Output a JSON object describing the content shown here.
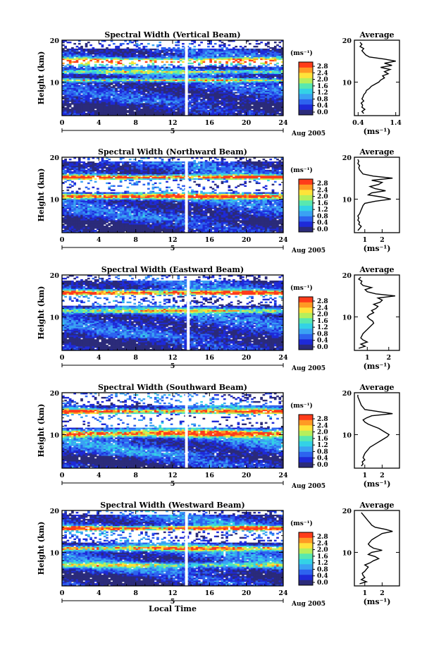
{
  "figure": {
    "date_label": "Aug 2005",
    "xlabel_bottom": "Local Time",
    "colorbar_ticks": [
      "0.0",
      "0.4",
      "0.8",
      "1.2",
      "1.6",
      "2.0",
      "2.4",
      "2.8"
    ],
    "colorbar_unit": "(ms⁻¹)",
    "colorbar_colors": [
      "#2b2b7a",
      "#1e2ad8",
      "#2d63ef",
      "#3aa2f3",
      "#33d2e6",
      "#58e8b0",
      "#b6ef5c",
      "#ffe33a",
      "#ff9a24",
      "#ff3c1a"
    ],
    "average_title": "Average",
    "average_xlabel": "(ms⁻¹)",
    "height_label": "Height (km)"
  },
  "chart_data": [
    {
      "type": "heatmap",
      "title": "Spectral Width (Vertical Beam)",
      "xlabel": "",
      "ylabel": "Height (km)",
      "x_range": [
        0,
        24
      ],
      "y_range": [
        2,
        20
      ],
      "x_ticks": [
        0,
        4,
        8,
        12,
        16,
        20,
        24
      ],
      "y_ticks": [
        10,
        20
      ],
      "day_marker": "5",
      "gap_local_time": 13.5,
      "colorbar_range": [
        0,
        3.0
      ],
      "avg_profile": {
        "x_ticks": [
          0.4,
          1.4
        ],
        "x_range": [
          0.3,
          1.5
        ],
        "y_ticks": [
          10,
          20
        ],
        "height": [
          2.5,
          3,
          3.5,
          4,
          4.5,
          5,
          5.5,
          6,
          6.5,
          7,
          7.5,
          8,
          8.5,
          9,
          9.5,
          10,
          10.5,
          11,
          11.5,
          12,
          12.5,
          13,
          13.5,
          14,
          14.5,
          15,
          15.5,
          16,
          16.5,
          17,
          17.5,
          18,
          18.5,
          19,
          19.5
        ],
        "width": [
          0.55,
          0.5,
          0.58,
          0.5,
          0.52,
          0.48,
          0.55,
          0.5,
          0.53,
          0.55,
          0.6,
          0.62,
          0.7,
          0.75,
          0.85,
          0.95,
          1.0,
          1.1,
          1.05,
          1.2,
          1.1,
          1.25,
          1.0,
          1.3,
          1.1,
          1.4,
          1.1,
          0.7,
          0.6,
          0.55,
          0.5,
          0.55,
          0.45,
          0.5,
          0.45
        ]
      }
    },
    {
      "type": "heatmap",
      "title": "Spectral Width (Northward Beam)",
      "xlabel": "",
      "ylabel": "Height (km)",
      "x_range": [
        0,
        24
      ],
      "y_range": [
        2,
        20
      ],
      "x_ticks": [
        0,
        4,
        8,
        12,
        16,
        20,
        24
      ],
      "y_ticks": [
        10,
        20
      ],
      "day_marker": "5",
      "gap_local_time": 13.5,
      "colorbar_range": [
        0,
        3.0
      ],
      "avg_profile": {
        "x_ticks": [
          1,
          2
        ],
        "x_range": [
          0.4,
          3.0
        ],
        "y_ticks": [
          10,
          20
        ],
        "height": [
          2.5,
          3,
          3.5,
          4,
          4.5,
          5,
          5.5,
          6,
          6.5,
          7,
          7.5,
          8,
          8.5,
          9,
          9.5,
          10,
          10.5,
          11,
          11.5,
          12,
          12.5,
          13,
          13.5,
          14,
          14.5,
          15,
          15.5,
          16,
          16.5,
          17,
          17.5,
          18,
          18.5,
          19,
          19.5
        ],
        "width": [
          0.6,
          0.7,
          0.8,
          0.65,
          0.7,
          0.6,
          0.65,
          0.6,
          0.7,
          0.75,
          0.8,
          0.85,
          0.9,
          1.0,
          1.6,
          2.5,
          2.0,
          1.2,
          1.4,
          2.2,
          1.6,
          1.3,
          1.8,
          2.0,
          1.4,
          2.6,
          1.5,
          0.9,
          0.8,
          0.7,
          0.65,
          0.7,
          0.6,
          0.65,
          0.6
        ]
      }
    },
    {
      "type": "heatmap",
      "title": "Spectral Width (Eastward Beam)",
      "xlabel": "",
      "ylabel": "Height (km)",
      "x_range": [
        0,
        24
      ],
      "y_range": [
        2,
        20
      ],
      "x_ticks": [
        0,
        4,
        8,
        12,
        16,
        20,
        24
      ],
      "y_ticks": [
        10,
        20
      ],
      "day_marker": "5",
      "gap_local_time": 13.7,
      "colorbar_range": [
        0,
        3.0
      ],
      "avg_profile": {
        "x_ticks": [
          1,
          2
        ],
        "x_range": [
          0.4,
          2.5
        ],
        "y_ticks": [
          10,
          20
        ],
        "height": [
          2.5,
          3,
          3.5,
          4,
          4.5,
          5,
          5.5,
          6,
          6.5,
          7,
          7.5,
          8,
          8.5,
          9,
          9.5,
          10,
          10.5,
          11,
          11.5,
          12,
          12.5,
          13,
          13.5,
          14,
          14.5,
          15,
          15.5,
          16,
          16.5,
          17,
          17.5,
          18,
          18.5,
          19,
          19.5
        ],
        "width": [
          0.6,
          0.9,
          0.7,
          1.0,
          0.8,
          0.7,
          0.75,
          0.8,
          0.9,
          1.0,
          1.1,
          1.2,
          1.3,
          1.25,
          1.1,
          1.0,
          1.1,
          1.3,
          1.2,
          1.4,
          1.5,
          1.3,
          1.6,
          1.7,
          1.5,
          2.3,
          1.4,
          1.0,
          0.9,
          1.2,
          0.8,
          0.7,
          0.75,
          0.6,
          0.7
        ]
      }
    },
    {
      "type": "heatmap",
      "title": "Spectral Width (Southward Beam)",
      "xlabel": "",
      "ylabel": "Height (km)",
      "x_range": [
        0,
        24
      ],
      "y_range": [
        2,
        20
      ],
      "x_ticks": [
        0,
        4,
        8,
        12,
        16,
        20,
        24
      ],
      "y_ticks": [
        10,
        20
      ],
      "day_marker": "5",
      "gap_local_time": 13.5,
      "colorbar_range": [
        0,
        3.0
      ],
      "avg_profile": {
        "x_ticks": [
          1,
          2
        ],
        "x_range": [
          0.4,
          3.0
        ],
        "y_ticks": [
          10,
          20
        ],
        "height": [
          2.5,
          3,
          3.5,
          4,
          4.5,
          5,
          5.5,
          6,
          6.5,
          7,
          7.5,
          8,
          8.5,
          9,
          9.5,
          10,
          10.5,
          11,
          11.5,
          12,
          12.5,
          13,
          13.5,
          14,
          14.5,
          15,
          15.5,
          16,
          16.5,
          17,
          17.5,
          18,
          18.5,
          19,
          19.5
        ],
        "width": [
          0.8,
          0.9,
          0.85,
          1.0,
          0.9,
          0.95,
          1.0,
          1.1,
          1.2,
          1.3,
          1.5,
          1.7,
          1.9,
          2.1,
          2.3,
          2.4,
          2.2,
          2.0,
          1.8,
          1.5,
          1.2,
          1.0,
          0.9,
          1.1,
          1.4,
          2.6,
          1.8,
          1.0,
          0.9,
          0.8,
          0.75,
          0.7,
          0.65,
          0.6,
          0.6
        ]
      }
    },
    {
      "type": "heatmap",
      "title": "Spectral Width (Westward Beam)",
      "xlabel": "Local Time",
      "ylabel": "Height (km)",
      "x_range": [
        0,
        24
      ],
      "y_range": [
        2,
        20
      ],
      "x_ticks": [
        0,
        4,
        8,
        12,
        16,
        20,
        24
      ],
      "y_ticks": [
        10,
        20
      ],
      "day_marker": "5",
      "gap_local_time": 13.5,
      "colorbar_range": [
        0,
        3.0
      ],
      "avg_profile": {
        "x_ticks": [
          1,
          2
        ],
        "x_range": [
          0.4,
          3.0
        ],
        "y_ticks": [
          10,
          20
        ],
        "height": [
          2.5,
          3,
          3.5,
          4,
          4.5,
          5,
          5.5,
          6,
          6.5,
          7,
          7.5,
          8,
          8.5,
          9,
          9.5,
          10,
          10.5,
          11,
          11.5,
          12,
          12.5,
          13,
          13.5,
          14,
          14.5,
          15,
          15.5,
          16,
          16.5,
          17,
          17.5,
          18,
          18.5,
          19,
          19.5
        ],
        "width": [
          0.7,
          1.1,
          0.8,
          1.0,
          0.9,
          0.85,
          1.0,
          1.1,
          1.2,
          1.0,
          1.3,
          1.5,
          1.8,
          1.6,
          1.2,
          1.4,
          2.0,
          1.5,
          1.3,
          1.2,
          1.3,
          1.4,
          1.6,
          1.8,
          2.0,
          2.6,
          2.2,
          1.6,
          1.4,
          1.3,
          1.2,
          1.1,
          1.0,
          0.9,
          0.8
        ]
      }
    }
  ]
}
